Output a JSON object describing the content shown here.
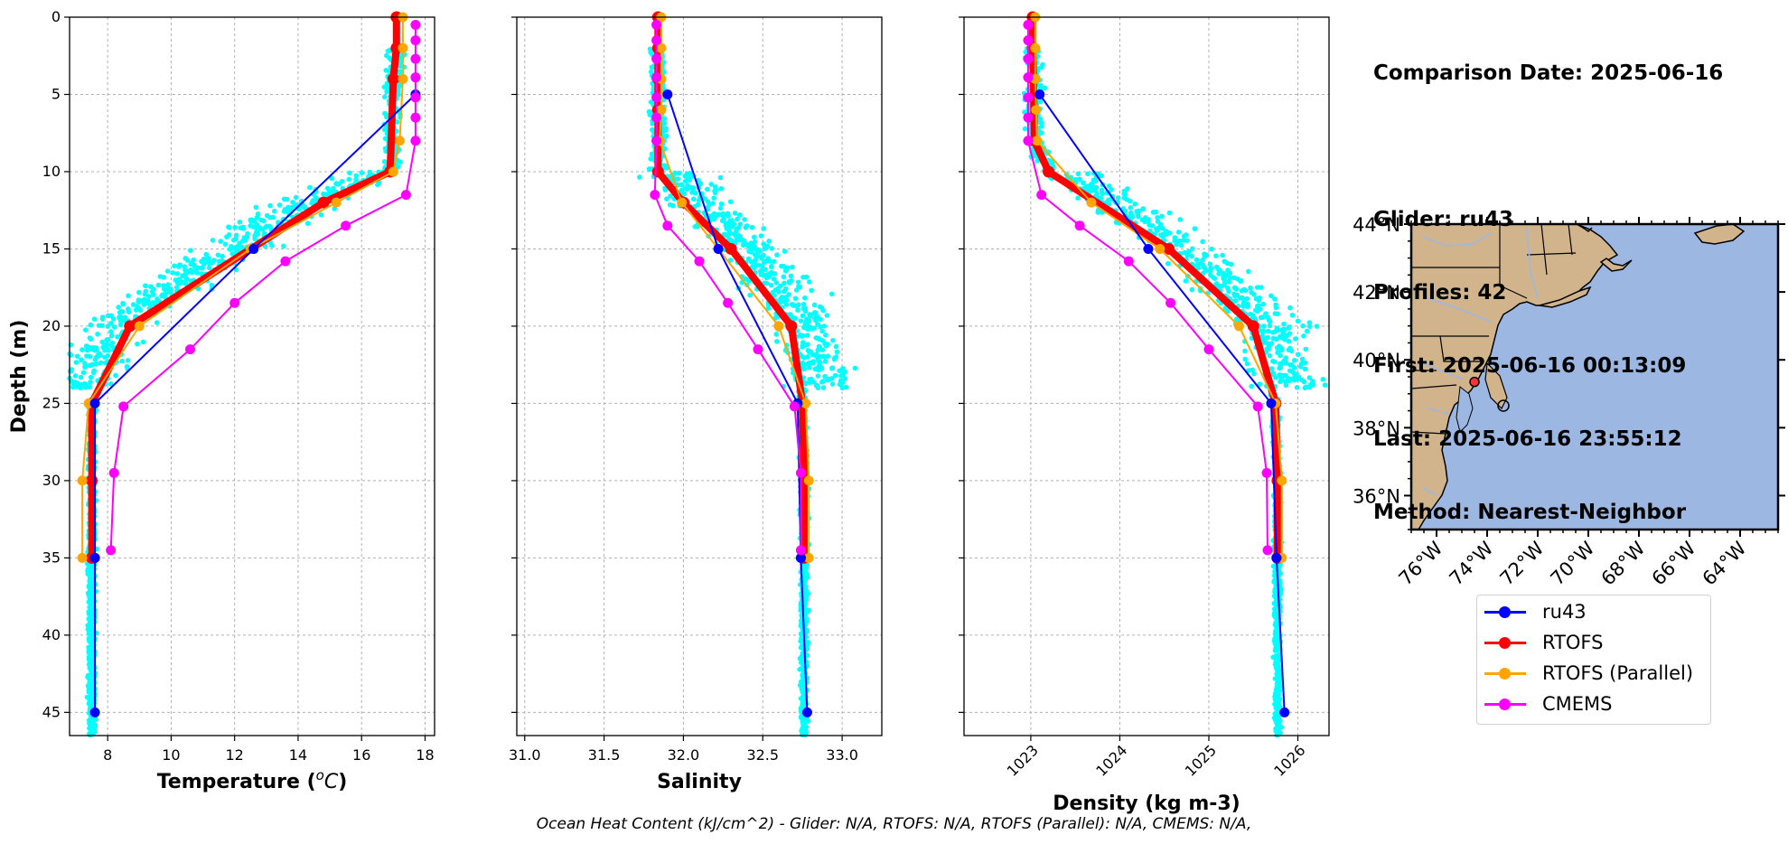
{
  "info": {
    "comparison_date": "Comparison Date: 2025-06-16",
    "glider": "Glider: ru43",
    "profiles": "Profiles: 42",
    "first": "First: 2025-06-16 00:13:09",
    "last": "Last: 2025-06-16 23:55:12",
    "method": "Method: Nearest-Neighbor"
  },
  "footer": "Ocean Heat Content (kJ/cm^2) - Glider: N/A,  RTOFS: N/A,  RTOFS (Parallel): N/A,  CMEMS: N/A,",
  "legend": [
    {
      "name": "ru43",
      "color": "#0000ff"
    },
    {
      "name": "RTOFS",
      "color": "#ff0000"
    },
    {
      "name": "RTOFS (Parallel)",
      "color": "#ffa500"
    },
    {
      "name": "CMEMS",
      "color": "#ff00ff"
    }
  ],
  "chart_data": [
    {
      "type": "line",
      "xlabel": "Temperature ($^{o}C$)",
      "ylabel": "Depth (m)",
      "xlim": [
        6.8,
        18.3
      ],
      "ylim": [
        46.5,
        0
      ],
      "xticks": [
        8,
        10,
        12,
        14,
        16,
        18
      ],
      "yticks": [
        0,
        5,
        10,
        15,
        20,
        25,
        30,
        35,
        40,
        45
      ],
      "grid": true,
      "scatter_color": "#00ffff",
      "series": [
        {
          "name": "ru43",
          "color": "#0000ff",
          "width": 2,
          "x": [
            17.7,
            12.6,
            7.6,
            7.6,
            7.6,
            7.6
          ],
          "y": [
            5,
            15,
            25,
            35,
            35,
            45
          ]
        },
        {
          "name": "RTOFS",
          "color": "#ff0000",
          "width": 8,
          "x": [
            17.1,
            17.1,
            17.0,
            16.9,
            14.8,
            8.7,
            7.5,
            7.5,
            7.5
          ],
          "y": [
            0,
            2,
            4,
            10,
            12,
            20,
            25,
            30,
            35
          ]
        },
        {
          "name": "RTOFS (Parallel)",
          "color": "#ffa500",
          "width": 2,
          "x": [
            17.3,
            17.3,
            17.3,
            17.2,
            17.0,
            15.2,
            12.5,
            9.0,
            7.4,
            7.2,
            7.2
          ],
          "y": [
            0,
            2,
            4,
            8,
            10,
            12,
            15,
            20,
            25,
            30,
            35
          ]
        },
        {
          "name": "CMEMS",
          "color": "#ff00ff",
          "width": 2,
          "x": [
            17.7,
            17.7,
            17.7,
            17.7,
            17.7,
            17.7,
            17.7,
            17.4,
            15.5,
            13.6,
            12.0,
            10.6,
            8.5,
            8.2,
            8.1
          ],
          "y": [
            0.5,
            1.5,
            2.7,
            3.9,
            5.2,
            6.5,
            8,
            11.5,
            13.5,
            15.8,
            18.5,
            21.5,
            25.2,
            29.5,
            34.5
          ]
        }
      ]
    },
    {
      "type": "line",
      "xlabel": "Salinity",
      "ylabel": "",
      "xlim": [
        30.95,
        33.25
      ],
      "ylim": [
        46.5,
        0
      ],
      "xticks": [
        31.0,
        31.5,
        32.0,
        32.5,
        33.0
      ],
      "yticks": [
        0,
        5,
        10,
        15,
        20,
        25,
        30,
        35,
        40,
        45
      ],
      "grid": true,
      "scatter_color": "#00ffff",
      "series": [
        {
          "name": "ru43",
          "color": "#0000ff",
          "width": 2,
          "x": [
            31.9,
            32.22,
            32.72,
            32.74,
            32.74,
            32.78
          ],
          "y": [
            5,
            15,
            25,
            35,
            35,
            45
          ]
        },
        {
          "name": "RTOFS",
          "color": "#ff0000",
          "width": 8,
          "x": [
            31.84,
            31.84,
            31.84,
            31.84,
            31.84,
            32.0,
            32.3,
            32.68,
            32.75,
            32.76,
            32.76
          ],
          "y": [
            0,
            2,
            4,
            6,
            10,
            12,
            15,
            20,
            25,
            30,
            35
          ]
        },
        {
          "name": "RTOFS (Parallel)",
          "color": "#ffa500",
          "width": 2,
          "x": [
            31.86,
            31.86,
            31.86,
            31.86,
            31.85,
            31.99,
            32.22,
            32.6,
            32.77,
            32.79,
            32.79
          ],
          "y": [
            0,
            2,
            4,
            6,
            8,
            12,
            15,
            20,
            25,
            30,
            35
          ]
        },
        {
          "name": "CMEMS",
          "color": "#ff00ff",
          "width": 2,
          "x": [
            31.83,
            31.83,
            31.83,
            31.83,
            31.83,
            31.83,
            31.83,
            31.82,
            31.9,
            32.1,
            32.28,
            32.47,
            32.7,
            32.74,
            32.74
          ],
          "y": [
            0.5,
            1.5,
            2.7,
            3.9,
            5.2,
            6.5,
            8,
            11.5,
            13.5,
            15.8,
            18.5,
            21.5,
            25.2,
            29.5,
            34.5
          ]
        }
      ]
    },
    {
      "type": "line",
      "xlabel": "Density (kg m-3)",
      "ylabel": "",
      "xlim": [
        1022.25,
        1026.35
      ],
      "ylim": [
        46.5,
        0
      ],
      "xticks": [
        1023,
        1024,
        1025,
        1026
      ],
      "yticks": [
        0,
        5,
        10,
        15,
        20,
        25,
        30,
        35,
        40,
        45
      ],
      "grid": true,
      "scatter_color": "#00ffff",
      "series": [
        {
          "name": "ru43",
          "color": "#0000ff",
          "width": 2,
          "x": [
            1023.1,
            1024.32,
            1025.7,
            1025.76,
            1025.76,
            1025.85
          ],
          "y": [
            5,
            15,
            25,
            35,
            35,
            45
          ]
        },
        {
          "name": "RTOFS",
          "color": "#ff0000",
          "width": 8,
          "x": [
            1023.02,
            1023.02,
            1023.03,
            1023.04,
            1023.2,
            1024.55,
            1025.5,
            1025.75,
            1025.77,
            1025.77
          ],
          "y": [
            0,
            2,
            4,
            8,
            10,
            15,
            20,
            25,
            30,
            35
          ]
        },
        {
          "name": "RTOFS (Parallel)",
          "color": "#ffa500",
          "width": 2,
          "x": [
            1023.05,
            1023.05,
            1023.05,
            1023.06,
            1023.07,
            1023.68,
            1024.45,
            1025.34,
            1025.75,
            1025.82,
            1025.82
          ],
          "y": [
            0,
            2,
            4,
            6,
            8,
            12,
            15,
            20,
            25,
            30,
            35
          ]
        },
        {
          "name": "CMEMS",
          "color": "#ff00ff",
          "width": 2,
          "x": [
            1022.97,
            1022.97,
            1022.97,
            1022.97,
            1022.97,
            1022.97,
            1022.97,
            1023.12,
            1023.55,
            1024.1,
            1024.57,
            1025.0,
            1025.55,
            1025.65,
            1025.66
          ],
          "y": [
            0.5,
            1.5,
            2.7,
            3.9,
            5.2,
            6.5,
            8,
            11.5,
            13.5,
            15.8,
            18.5,
            21.5,
            25.2,
            29.5,
            34.5
          ]
        }
      ]
    }
  ],
  "map": {
    "lat_ticks": [
      "44°N",
      "42°N",
      "40°N",
      "38°N",
      "36°N"
    ],
    "lon_ticks": [
      "76°W",
      "74°W",
      "72°W",
      "70°W",
      "68°W",
      "66°W",
      "64°W"
    ],
    "lat_range": [
      35,
      44
    ],
    "lon_range": [
      -77,
      -62.5
    ],
    "land_color": "#d2b48c",
    "ocean_color": "#9bb7e2",
    "glider_position": {
      "lon": -74.5,
      "lat": 39.35
    },
    "marker_color": "#ff3333"
  }
}
